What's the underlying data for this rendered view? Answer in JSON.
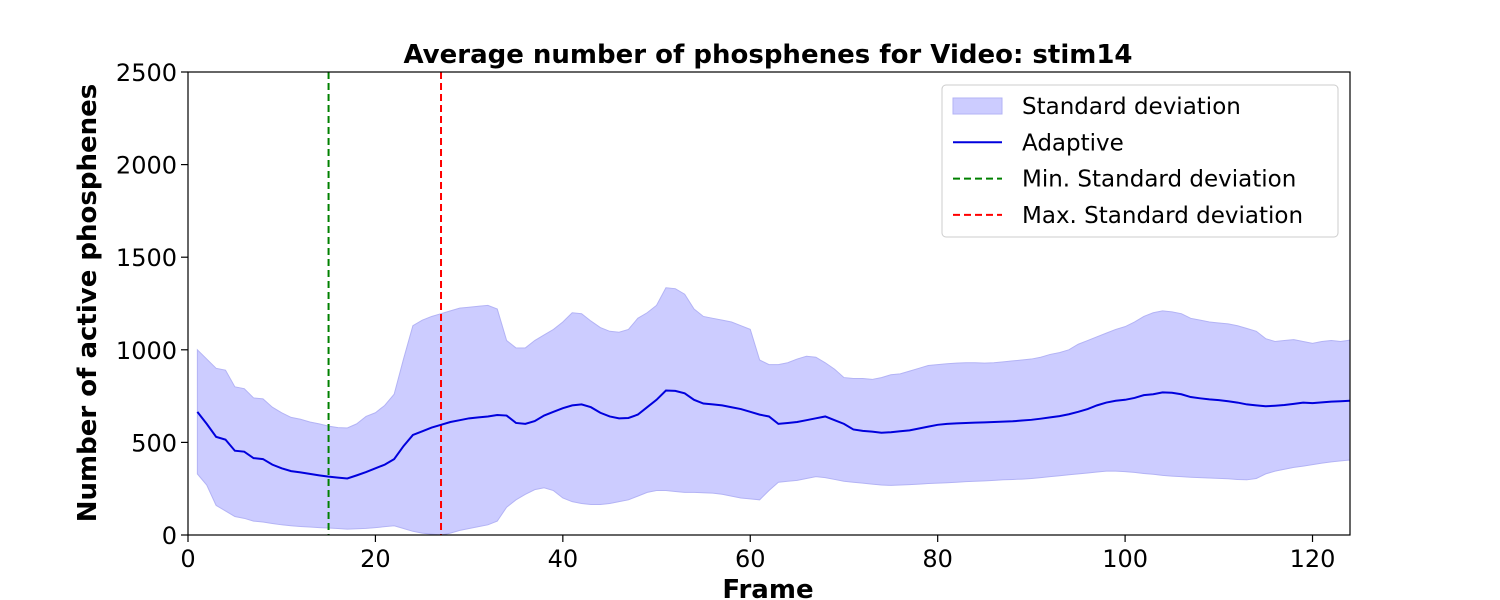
{
  "chart_data": {
    "type": "line",
    "title": "Average number of phosphenes for Video: stim14",
    "xlabel": "Frame",
    "ylabel": "Number of active phosphenes",
    "xlim": [
      0,
      124
    ],
    "ylim": [
      0,
      2500
    ],
    "xticks": [
      0,
      20,
      40,
      60,
      80,
      100,
      120
    ],
    "yticks": [
      0,
      500,
      1000,
      1500,
      2000,
      2500
    ],
    "grid": false,
    "legend_position": "top-right",
    "colors": {
      "band_fill": "#ccccff",
      "band_edge": "#b3b3f5",
      "line": "#0000dd",
      "min_line": "#008000",
      "max_line": "#ff0000"
    },
    "legend": [
      {
        "label": "Standard deviation",
        "kind": "band"
      },
      {
        "label": "Adaptive",
        "kind": "line"
      },
      {
        "label": "Min. Standard deviation",
        "kind": "min"
      },
      {
        "label": "Max. Standard deviation",
        "kind": "max"
      }
    ],
    "vlines": {
      "min_std_frame": 15,
      "max_std_frame": 27
    },
    "x": [
      1,
      2,
      3,
      4,
      5,
      6,
      7,
      8,
      9,
      10,
      11,
      12,
      13,
      14,
      15,
      16,
      17,
      18,
      19,
      20,
      21,
      22,
      23,
      24,
      25,
      26,
      27,
      28,
      29,
      30,
      31,
      32,
      33,
      34,
      35,
      36,
      37,
      38,
      39,
      40,
      41,
      42,
      43,
      44,
      45,
      46,
      47,
      48,
      49,
      50,
      51,
      52,
      53,
      54,
      55,
      56,
      57,
      58,
      59,
      60,
      61,
      62,
      63,
      64,
      65,
      66,
      67,
      68,
      69,
      70,
      71,
      72,
      73,
      74,
      75,
      76,
      77,
      78,
      79,
      80,
      81,
      82,
      83,
      84,
      85,
      86,
      87,
      88,
      89,
      90,
      91,
      92,
      93,
      94,
      95,
      96,
      97,
      98,
      99,
      100,
      101,
      102,
      103,
      104,
      105,
      106,
      107,
      108,
      109,
      110,
      111,
      112,
      113,
      114,
      115,
      116,
      117,
      118,
      119,
      120,
      121,
      122,
      123,
      124
    ],
    "series": [
      {
        "name": "Adaptive",
        "values": [
          665,
          600,
          530,
          515,
          455,
          450,
          415,
          410,
          380,
          360,
          345,
          338,
          330,
          322,
          315,
          310,
          305,
          322,
          340,
          360,
          380,
          410,
          480,
          540,
          560,
          580,
          595,
          610,
          620,
          630,
          635,
          640,
          648,
          645,
          605,
          600,
          615,
          645,
          665,
          685,
          700,
          705,
          690,
          660,
          640,
          630,
          632,
          650,
          690,
          730,
          780,
          778,
          765,
          730,
          710,
          705,
          700,
          690,
          680,
          665,
          650,
          640,
          600,
          605,
          610,
          620,
          630,
          640,
          620,
          600,
          570,
          562,
          558,
          552,
          555,
          560,
          565,
          575,
          585,
          595,
          600,
          603,
          605,
          607,
          608,
          610,
          612,
          614,
          618,
          622,
          628,
          635,
          642,
          652,
          665,
          680,
          700,
          715,
          725,
          730,
          740,
          755,
          760,
          770,
          768,
          760,
          745,
          738,
          732,
          728,
          722,
          715,
          705,
          700,
          695,
          698,
          702,
          708,
          715,
          712,
          716,
          720,
          722,
          725
        ]
      },
      {
        "name": "Standard deviation upper",
        "values": [
          1000,
          950,
          900,
          890,
          800,
          790,
          740,
          735,
          690,
          660,
          635,
          625,
          610,
          600,
          588,
          580,
          578,
          600,
          640,
          660,
          700,
          760,
          950,
          1130,
          1160,
          1180,
          1195,
          1210,
          1225,
          1230,
          1235,
          1240,
          1220,
          1050,
          1010,
          1010,
          1050,
          1080,
          1110,
          1150,
          1200,
          1195,
          1155,
          1120,
          1100,
          1095,
          1110,
          1170,
          1200,
          1240,
          1335,
          1330,
          1300,
          1220,
          1180,
          1170,
          1160,
          1150,
          1130,
          1110,
          945,
          920,
          920,
          930,
          950,
          965,
          960,
          930,
          895,
          850,
          845,
          845,
          840,
          850,
          865,
          870,
          885,
          900,
          915,
          920,
          925,
          928,
          930,
          930,
          928,
          930,
          935,
          940,
          945,
          950,
          960,
          975,
          985,
          1000,
          1030,
          1050,
          1070,
          1090,
          1110,
          1125,
          1150,
          1180,
          1200,
          1210,
          1205,
          1195,
          1170,
          1160,
          1150,
          1145,
          1140,
          1130,
          1115,
          1100,
          1060,
          1045,
          1050,
          1055,
          1045,
          1035,
          1045,
          1050,
          1045,
          1052
        ]
      },
      {
        "name": "Standard deviation lower",
        "values": [
          330,
          270,
          160,
          130,
          100,
          90,
          75,
          70,
          62,
          55,
          50,
          46,
          43,
          40,
          38,
          35,
          32,
          34,
          36,
          40,
          45,
          50,
          35,
          20,
          10,
          5,
          0,
          10,
          25,
          35,
          45,
          55,
          75,
          150,
          190,
          220,
          245,
          255,
          240,
          200,
          180,
          170,
          165,
          165,
          170,
          180,
          190,
          210,
          230,
          240,
          240,
          235,
          230,
          230,
          228,
          226,
          220,
          210,
          200,
          195,
          190,
          240,
          285,
          290,
          295,
          305,
          315,
          310,
          300,
          290,
          285,
          280,
          275,
          270,
          268,
          270,
          272,
          275,
          278,
          280,
          282,
          285,
          288,
          290,
          292,
          295,
          298,
          300,
          302,
          305,
          310,
          315,
          320,
          325,
          330,
          335,
          340,
          345,
          345,
          342,
          338,
          332,
          328,
          322,
          318,
          315,
          312,
          310,
          308,
          306,
          304,
          300,
          298,
          305,
          330,
          345,
          355,
          365,
          372,
          380,
          388,
          395,
          400,
          405
        ]
      }
    ]
  }
}
